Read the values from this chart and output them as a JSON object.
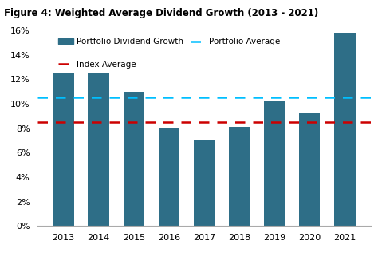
{
  "title": "Figure 4: Weighted Average Dividend Growth (2013 - 2021)",
  "years": [
    2013,
    2014,
    2015,
    2016,
    2017,
    2018,
    2019,
    2020,
    2021
  ],
  "values": [
    0.125,
    0.125,
    0.11,
    0.08,
    0.07,
    0.081,
    0.102,
    0.093,
    0.158
  ],
  "bar_color": "#2E6E87",
  "portfolio_average": 0.105,
  "index_average": 0.085,
  "portfolio_avg_color": "#00BFFF",
  "index_avg_color": "#CC0000",
  "ylim": [
    0,
    0.17
  ],
  "yticks": [
    0,
    0.02,
    0.04,
    0.06,
    0.08,
    0.1,
    0.12,
    0.14,
    0.16
  ],
  "legend_portfolio_label": "Portfolio Dividend Growth",
  "legend_portfolio_avg_label": "Portfolio Average",
  "legend_index_avg_label": "Index Average",
  "background_color": "#FFFFFF",
  "title_fontsize": 8.5,
  "tick_fontsize": 8.0,
  "legend_fontsize": 7.5
}
